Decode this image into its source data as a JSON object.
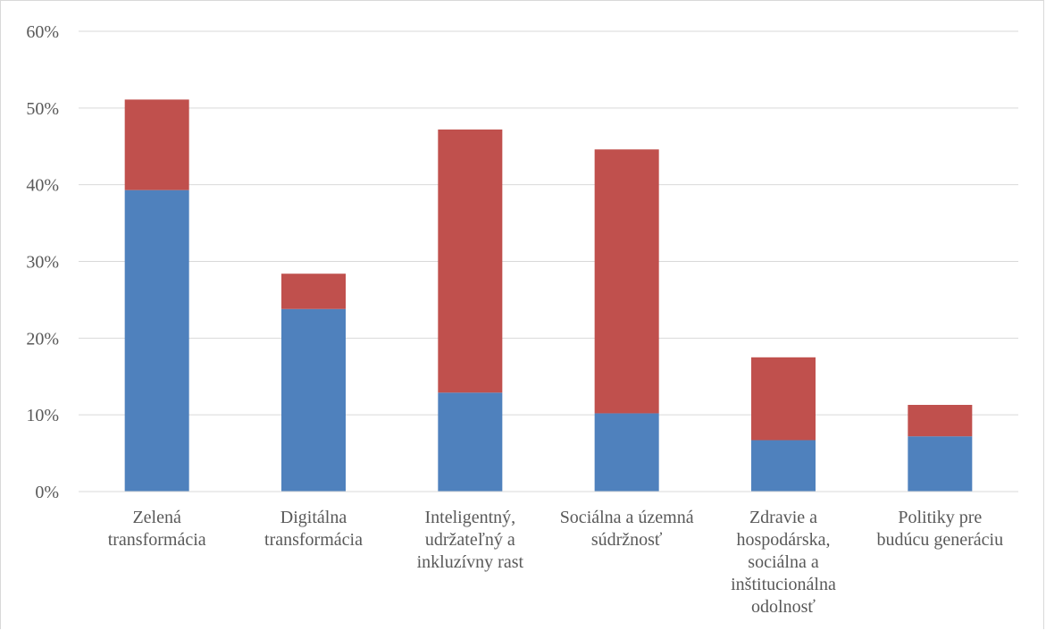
{
  "chart_data": {
    "type": "bar",
    "stacked": true,
    "categories": [
      [
        "Zelená",
        "transformácia"
      ],
      [
        "Digitálna",
        "transformácia"
      ],
      [
        "Inteligentný,",
        "udržateľný a",
        "inkluzívny rast"
      ],
      [
        "Sociálna a územná",
        "súdržnosť"
      ],
      [
        "Zdravie a",
        "hospodárska,",
        "sociálna a",
        "inštitucionálna",
        "odolnosť"
      ],
      [
        "Politiky pre",
        "budúcu generáciu"
      ]
    ],
    "series": [
      {
        "values": [
          39.3,
          23.8,
          12.9,
          10.2,
          6.7,
          7.2
        ],
        "color": "#4f81bd"
      },
      {
        "values": [
          11.8,
          4.6,
          34.3,
          34.4,
          10.8,
          4.1
        ],
        "color": "#c0504d"
      }
    ],
    "ylim": [
      0,
      60
    ],
    "yticks": [
      "0%",
      "10%",
      "20%",
      "30%",
      "40%",
      "50%",
      "60%"
    ],
    "ytick_values": [
      0,
      10,
      20,
      30,
      40,
      50,
      60
    ],
    "grid": true,
    "legend": "none",
    "gridColor": "#d9d9d9",
    "title": "",
    "xlabel": "",
    "ylabel": ""
  }
}
